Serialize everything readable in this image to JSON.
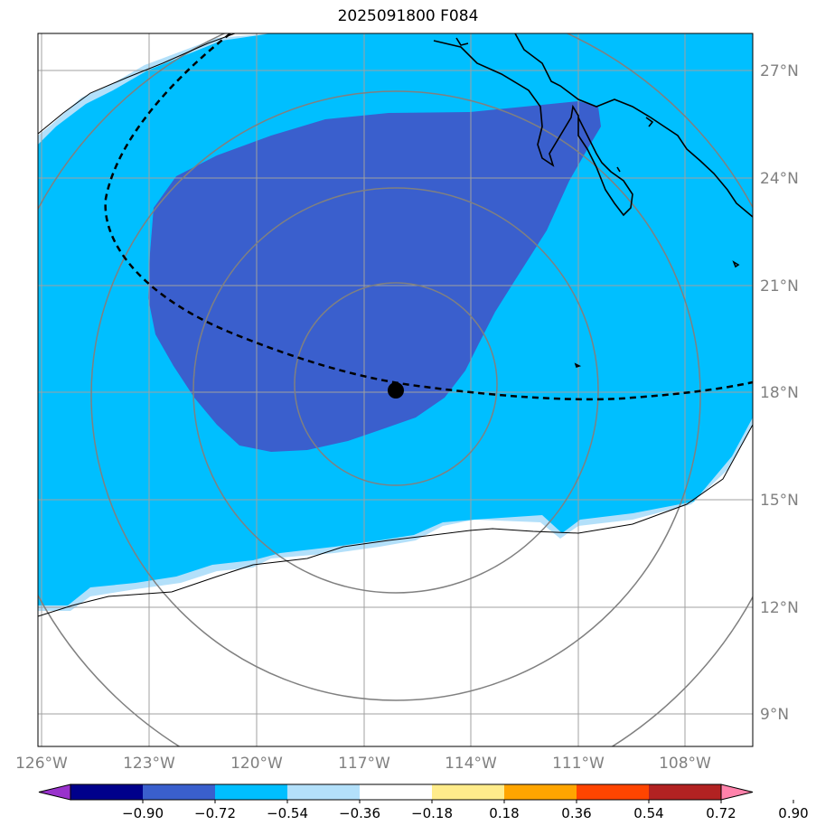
{
  "title": "2025091800 F084",
  "map": {
    "longitude_labels": [
      "126°W",
      "123°W",
      "120°W",
      "117°W",
      "114°W",
      "111°W",
      "108°W"
    ],
    "latitude_labels": [
      "27°N",
      "24°N",
      "21°N",
      "18°N",
      "15°N",
      "12°N",
      "9°N"
    ],
    "storm_center": {
      "lon": "116°W",
      "lat": "18°N"
    },
    "colors": {
      "shade_light": "#b3e0fa",
      "shade_mid": "#00bfff",
      "shade_dark": "#3a5fcd",
      "grid": "#a0a0a0",
      "range_rings": "#808080",
      "coast": "#000000"
    }
  },
  "colorbar": {
    "ticks": [
      "−0.90",
      "−0.72",
      "−0.54",
      "−0.36",
      "−0.18",
      "0.18",
      "0.36",
      "0.54",
      "0.72",
      "0.90"
    ],
    "colors": [
      "#9932cc",
      "#00008b",
      "#3a5fcd",
      "#00bfff",
      "#b3e0fa",
      "#ffffff",
      "#ffec8b",
      "#ffa500",
      "#ff4500",
      "#b22222",
      "#ff82ab"
    ]
  }
}
